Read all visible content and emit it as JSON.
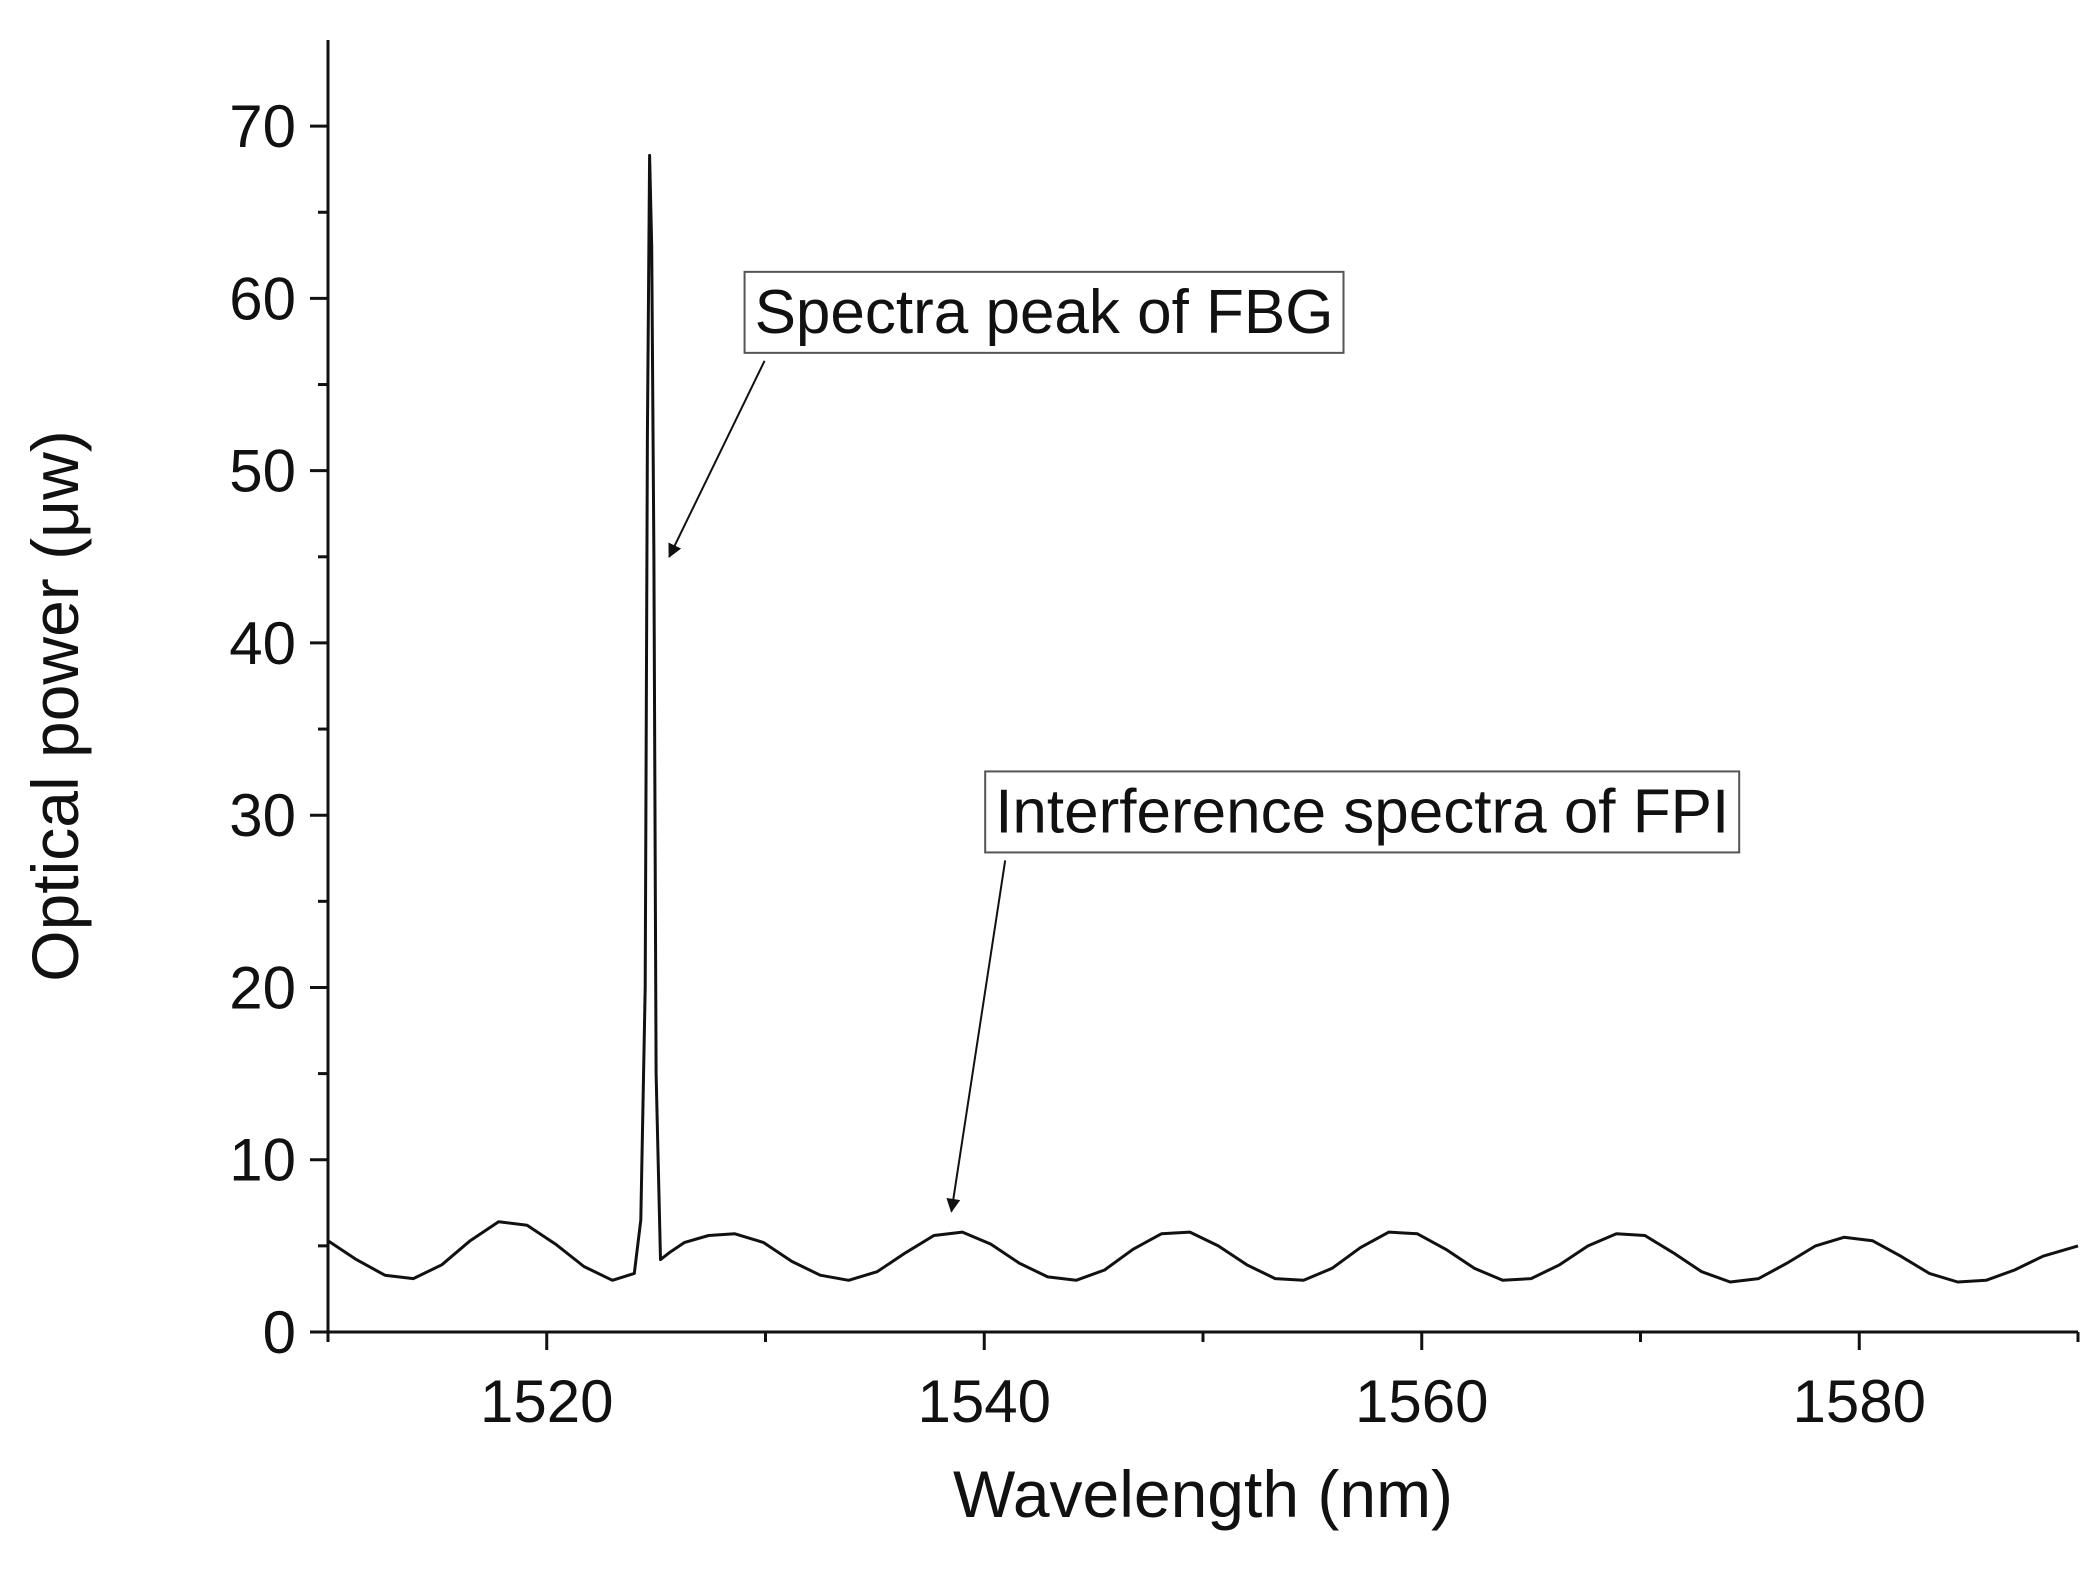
{
  "chart_data": {
    "type": "line",
    "xlabel": "Wavelength (nm)",
    "ylabel_prefix": "Optical power (",
    "ylabel_unit": "μw",
    "ylabel_suffix": ")",
    "xlim": [
      1510,
      1590
    ],
    "ylim": [
      0,
      75
    ],
    "x_ticks": [
      1520,
      1540,
      1560,
      1580
    ],
    "x_minor_ticks": [
      1510,
      1530,
      1550,
      1570,
      1590
    ],
    "y_ticks": [
      0,
      10,
      20,
      30,
      40,
      50,
      60,
      70
    ],
    "y_minor_ticks": [
      5,
      15,
      25,
      35,
      45,
      55,
      65
    ],
    "grid": false,
    "line_color": "#111111",
    "series": [
      {
        "x": [
          1510.0,
          1511.3,
          1512.6,
          1513.9,
          1515.2,
          1516.5,
          1517.8,
          1519.1,
          1520.4,
          1521.7,
          1523.0,
          1524.0,
          1524.3,
          1524.5,
          1524.6,
          1524.7,
          1524.8,
          1524.9,
          1525.0,
          1525.2,
          1525.6,
          1526.3,
          1527.4,
          1528.6,
          1529.9,
          1531.2,
          1532.5,
          1533.8,
          1535.1,
          1536.4,
          1537.7,
          1539.0,
          1540.3,
          1541.6,
          1542.9,
          1544.2,
          1545.5,
          1546.8,
          1548.1,
          1549.4,
          1550.7,
          1552.0,
          1553.3,
          1554.6,
          1555.9,
          1557.2,
          1558.5,
          1559.8,
          1561.1,
          1562.4,
          1563.7,
          1565.0,
          1566.3,
          1567.6,
          1568.9,
          1570.2,
          1571.5,
          1572.8,
          1574.1,
          1575.4,
          1576.7,
          1578.0,
          1579.3,
          1580.6,
          1581.9,
          1583.2,
          1584.5,
          1585.8,
          1587.1,
          1588.4,
          1590.0
        ],
        "y": [
          5.3,
          4.2,
          3.3,
          3.1,
          3.9,
          5.3,
          6.4,
          6.2,
          5.1,
          3.8,
          3.0,
          3.4,
          6.5,
          20.0,
          52.0,
          68.3,
          63.0,
          45.0,
          15.0,
          4.2,
          4.6,
          5.2,
          5.6,
          5.7,
          5.2,
          4.1,
          3.3,
          3.0,
          3.5,
          4.6,
          5.6,
          5.8,
          5.1,
          4.0,
          3.2,
          3.0,
          3.6,
          4.8,
          5.7,
          5.8,
          5.0,
          3.9,
          3.1,
          3.0,
          3.7,
          4.9,
          5.8,
          5.7,
          4.8,
          3.7,
          3.0,
          3.1,
          3.9,
          5.0,
          5.7,
          5.6,
          4.6,
          3.5,
          2.9,
          3.1,
          4.0,
          5.0,
          5.5,
          5.3,
          4.4,
          3.4,
          2.9,
          3.0,
          3.6,
          4.4,
          5.0
        ]
      }
    ],
    "annotations": [
      {
        "text": "Spectra peak of FBG",
        "x": 1529.5,
        "y": 58.0,
        "arrow_to": [
          1525.6,
          45.0
        ]
      },
      {
        "text": "Interference spectra of FPI",
        "x": 1540.5,
        "y": 29.0,
        "arrow_to": [
          1538.5,
          7.0
        ]
      }
    ]
  }
}
